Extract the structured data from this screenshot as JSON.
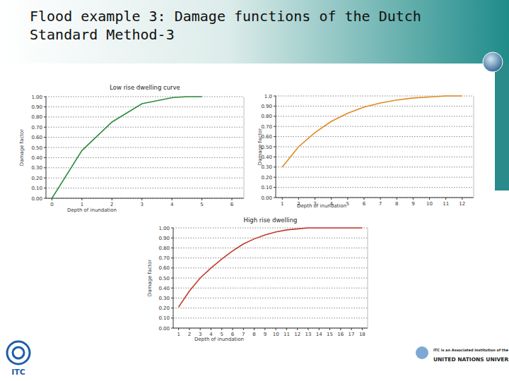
{
  "header": {
    "title_lines": [
      "Flood example 3: Damage functions of the Dutch",
      "Standard Method-3"
    ]
  },
  "chart_data": [
    {
      "type": "line",
      "title": "Low rise dwelling curve",
      "x_label": "Depth of inundation",
      "y_label": "Damage factor",
      "x": [
        0,
        1,
        2,
        3,
        4,
        4.5,
        5
      ],
      "values": [
        0,
        0.47,
        0.75,
        0.93,
        0.99,
        1.0,
        1.0
      ],
      "color": "#2e8b3e",
      "xlim": [
        -0.2,
        6.4
      ],
      "xticks": [
        0,
        1,
        2,
        3,
        4,
        5,
        6
      ],
      "ylim": [
        0,
        1
      ],
      "yticks": [
        {
          "value": 0,
          "label": "0.00"
        },
        {
          "value": 0.1,
          "label": "0.10"
        },
        {
          "value": 0.2,
          "label": "0.20"
        },
        {
          "value": 0.3,
          "label": "0.30"
        },
        {
          "value": 0.4,
          "label": "0.40"
        },
        {
          "value": 0.5,
          "label": "0.50"
        },
        {
          "value": 0.6,
          "label": "0.60"
        },
        {
          "value": 0.7,
          "label": "0.70"
        },
        {
          "value": 0.8,
          "label": "0.80"
        },
        {
          "value": 0.9,
          "label": "0.90"
        },
        {
          "value": 1,
          "label": "1.00"
        }
      ],
      "grid": true
    },
    {
      "type": "line",
      "x_label": "Depth of inundation",
      "y_label": "Damage factor",
      "x": [
        1,
        2,
        3,
        4,
        5,
        6,
        7,
        8,
        9,
        10,
        11,
        12
      ],
      "values": [
        0.3,
        0.5,
        0.64,
        0.75,
        0.83,
        0.89,
        0.93,
        0.96,
        0.98,
        0.99,
        1.0,
        1.0
      ],
      "color": "#e08a1e",
      "xlim": [
        0.6,
        12.7
      ],
      "xticks": [
        1,
        2,
        3,
        4,
        5,
        6,
        7,
        8,
        9,
        10,
        11,
        12
      ],
      "ylim": [
        0,
        1
      ],
      "yticks": [
        {
          "value": 0,
          "label": "0.00"
        },
        {
          "value": 0.1,
          "label": "0.10"
        },
        {
          "value": 0.2,
          "label": "0.20"
        },
        {
          "value": 0.3,
          "label": "0.30"
        },
        {
          "value": 0.4,
          "label": "0.40"
        },
        {
          "value": 0.5,
          "label": "0.50"
        },
        {
          "value": 0.6,
          "label": "0.60"
        },
        {
          "value": 0.7,
          "label": "0.70"
        },
        {
          "value": 0.8,
          "label": "0.80"
        },
        {
          "value": 0.9,
          "label": "0.90"
        },
        {
          "value": 1,
          "label": "1.0"
        }
      ],
      "grid": true
    },
    {
      "type": "line",
      "title": "High rise dwelling",
      "x_label": "Depth of inundation",
      "y_label": "Damage factor",
      "x": [
        1,
        2,
        3,
        4,
        5,
        6,
        7,
        8,
        9,
        10,
        11,
        12,
        13,
        14,
        15,
        16,
        17,
        18
      ],
      "values": [
        0.21,
        0.37,
        0.5,
        0.6,
        0.69,
        0.77,
        0.84,
        0.89,
        0.93,
        0.96,
        0.98,
        0.99,
        1.0,
        1.0,
        1.0,
        1.0,
        1.0,
        1.0
      ],
      "color": "#c0392b",
      "xlim": [
        0.5,
        18.5
      ],
      "xticks": [
        1,
        2,
        3,
        4,
        5,
        6,
        7,
        8,
        9,
        10,
        11,
        12,
        13,
        14,
        15,
        16,
        17,
        18
      ],
      "ylim": [
        0,
        1
      ],
      "yticks": [
        {
          "value": 0,
          "label": "0.00"
        },
        {
          "value": 0.1,
          "label": "0.10"
        },
        {
          "value": 0.2,
          "label": "0.20"
        },
        {
          "value": 0.3,
          "label": "0.30"
        },
        {
          "value": 0.4,
          "label": "0.40"
        },
        {
          "value": 0.5,
          "label": "0.50"
        },
        {
          "value": 0.6,
          "label": "0.60"
        },
        {
          "value": 0.7,
          "label": "0.70"
        },
        {
          "value": 0.8,
          "label": "0.80"
        },
        {
          "value": 0.9,
          "label": "0.90"
        },
        {
          "value": 1,
          "label": "1.00"
        }
      ],
      "grid": true
    }
  ],
  "footer": {
    "logo": "ITC",
    "partner_lines": [
      "ITC is an Associated Institution of the",
      "UNITED NATIONS UNIVERSITY"
    ]
  }
}
